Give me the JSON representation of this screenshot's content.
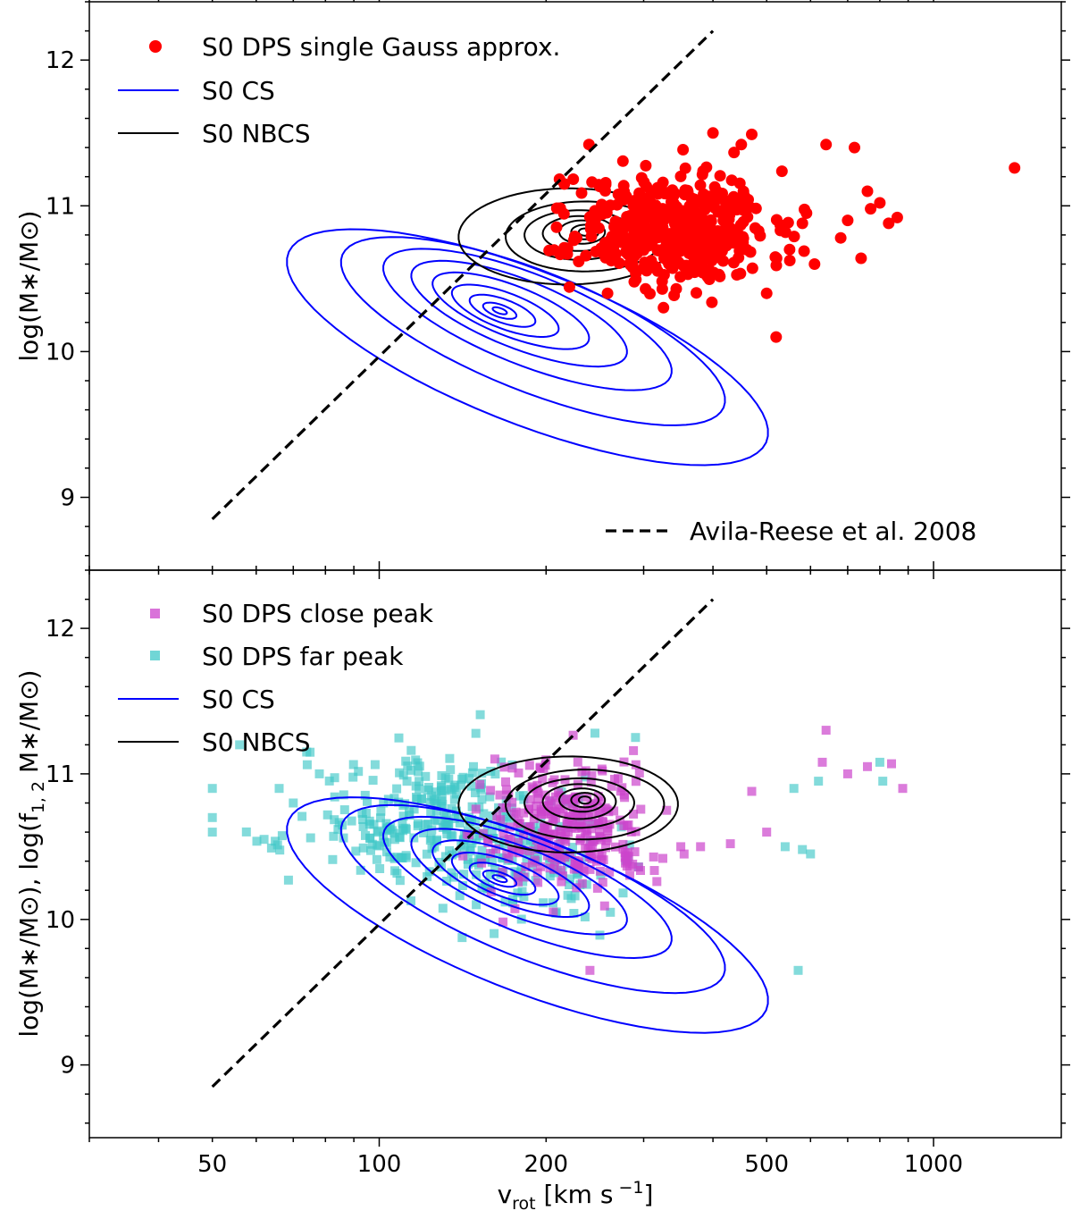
{
  "chart_data": [
    {
      "type": "scatter",
      "panel": "top",
      "xscale": "log",
      "xlim": [
        30,
        1700
      ],
      "ylim": [
        8.5,
        12.4
      ],
      "yticks": [
        9,
        10,
        11,
        12
      ],
      "ylabel": "log(M∗/M⊙)",
      "grid": false,
      "legend_position": "upper-left",
      "legend": [
        {
          "label": "S0 DPS single Gauss approx.",
          "kind": "marker",
          "color": "#ff0000"
        },
        {
          "label": "S0 CS",
          "kind": "line",
          "color": "#0000ff"
        },
        {
          "label": "S0 NBCS",
          "kind": "line",
          "color": "#000000"
        }
      ],
      "extra_legend": {
        "label": "Avila-Reese et al. 2008",
        "position": "lower-right"
      },
      "relation_line": {
        "name": "Avila-Reese et al. 2008",
        "style": "dashed",
        "color": "#000000",
        "points": [
          [
            50,
            8.85
          ],
          [
            400,
            12.2
          ]
        ]
      },
      "cloud_series": [
        {
          "name": "S0 DPS single Gauss approx.",
          "color": "#ff0000",
          "marker": "circle",
          "alpha": 1.0,
          "clusters": [
            {
              "n": 470,
              "logx_mean": 2.53,
              "logx_sd": 0.085,
              "y_mean": 10.84,
              "y_sd": 0.2,
              "logx_min": 2.3,
              "seed": 11
            }
          ],
          "explicit_points": [
            [
              1400,
              11.26
            ],
            [
              590,
              10.95
            ],
            [
              580,
              10.88
            ],
            [
              640,
              11.42
            ],
            [
              720,
              11.4
            ],
            [
              760,
              11.1
            ],
            [
              800,
              11.02
            ],
            [
              830,
              10.88
            ],
            [
              860,
              10.92
            ],
            [
              700,
              10.9
            ],
            [
              680,
              10.78
            ],
            [
              740,
              10.64
            ],
            [
              610,
              10.6
            ],
            [
              520,
              10.1
            ],
            [
              500,
              10.4
            ],
            [
              550,
              10.7
            ],
            [
              770,
              10.98
            ],
            [
              400,
              11.5
            ],
            [
              470,
              11.49
            ],
            [
              450,
              11.42
            ]
          ]
        }
      ],
      "contours": [
        {
          "name": "S0 CS",
          "color": "#0000ff",
          "center": {
            "x": 165,
            "y": 10.28
          },
          "levels": [
            {
              "a": 0.42,
              "b": 1.05,
              "angle_deg": 44,
              "dlogx": 0.05,
              "dy": -0.25
            },
            {
              "a": 0.33,
              "b": 0.84,
              "angle_deg": 44,
              "dlogx": 0.06,
              "dy": -0.14
            },
            {
              "a": 0.25,
              "b": 0.63,
              "angle_deg": 44,
              "dlogx": 0.05,
              "dy": -0.06
            },
            {
              "a": 0.19,
              "b": 0.47,
              "angle_deg": 44,
              "dlogx": 0.035,
              "dy": -0.02
            },
            {
              "a": 0.14,
              "b": 0.34,
              "angle_deg": 44,
              "dlogx": 0.02,
              "dy": 0.0
            },
            {
              "a": 0.1,
              "b": 0.23,
              "angle_deg": 44,
              "dlogx": 0.01,
              "dy": 0.0
            },
            {
              "a": 0.065,
              "b": 0.14,
              "angle_deg": 44,
              "dlogx": 0.005,
              "dy": 0.0
            },
            {
              "a": 0.035,
              "b": 0.07,
              "angle_deg": 44,
              "dlogx": 0.0,
              "dy": 0.0
            },
            {
              "a": 0.015,
              "b": 0.03,
              "angle_deg": 44,
              "dlogx": 0.0,
              "dy": 0.0
            }
          ]
        },
        {
          "name": "S0 NBCS",
          "color": "#000000",
          "center": {
            "x": 235,
            "y": 10.82
          },
          "levels": [
            {
              "a": 0.36,
              "b": 0.33,
              "angle_deg": 3,
              "dlogx": -0.03,
              "dy": -0.03
            },
            {
              "a": 0.26,
              "b": 0.24,
              "angle_deg": 3,
              "dlogx": 0.0,
              "dy": -0.03
            },
            {
              "a": 0.18,
              "b": 0.17,
              "angle_deg": 3,
              "dlogx": -0.01,
              "dy": -0.02
            },
            {
              "a": 0.12,
              "b": 0.12,
              "angle_deg": 3,
              "dlogx": -0.01,
              "dy": -0.01
            },
            {
              "a": 0.075,
              "b": 0.08,
              "angle_deg": 3,
              "dlogx": -0.005,
              "dy": 0.0
            },
            {
              "a": 0.045,
              "b": 0.05,
              "angle_deg": 3,
              "dlogx": 0.0,
              "dy": 0.0
            },
            {
              "a": 0.02,
              "b": 0.025,
              "angle_deg": 3,
              "dlogx": 0.0,
              "dy": 0.0
            }
          ]
        }
      ]
    },
    {
      "type": "scatter",
      "panel": "bottom",
      "xscale": "log",
      "xlim": [
        30,
        1700
      ],
      "ylim": [
        8.5,
        12.4
      ],
      "xticks": [
        50,
        100,
        200,
        500,
        1000
      ],
      "xtick_labels": [
        "50",
        "100",
        "200",
        "500",
        "1000"
      ],
      "yticks": [
        9,
        10,
        11,
        12
      ],
      "xlabel": "v",
      "xlabel_sub": "rot",
      "xlabel_tail": " [km s",
      "xlabel_sup": " −1",
      "xlabel_end": "]",
      "ylabel": "log(M∗/M⊙), log(f",
      "ylabel_sub": "1, 2",
      "ylabel_tail": " M∗/M⊙)",
      "grid": false,
      "legend_position": "upper-left",
      "legend": [
        {
          "label": "S0 DPS close peak",
          "kind": "marker",
          "color": "#cc44cc"
        },
        {
          "label": "S0 DPS far peak",
          "kind": "marker",
          "color": "#40c8c8"
        },
        {
          "label": "S0 CS",
          "kind": "line",
          "color": "#0000ff"
        },
        {
          "label": "S0 NBCS",
          "kind": "line",
          "color": "#000000"
        }
      ],
      "relation_line": {
        "name": "Avila-Reese et al. 2008",
        "style": "dashed",
        "color": "#000000",
        "points": [
          [
            50,
            8.85
          ],
          [
            400,
            12.2
          ]
        ]
      },
      "cloud_series": [
        {
          "name": "S0 DPS far peak",
          "color": "#40c8c8",
          "marker": "square",
          "alpha": 0.65,
          "clusters": [
            {
              "n": 270,
              "logx_mean": 2.1,
              "logx_sd": 0.11,
              "y_mean": 10.68,
              "y_sd": 0.22,
              "seed": 21
            },
            {
              "n": 110,
              "logx_mean": 2.27,
              "logx_sd": 0.08,
              "y_mean": 10.38,
              "y_sd": 0.18,
              "seed": 22
            }
          ],
          "explicit_points": [
            [
              50,
              10.9
            ],
            [
              50,
              10.7
            ],
            [
              50,
              10.6
            ],
            [
              62,
              10.55
            ],
            [
              66,
              10.9
            ],
            [
              70,
              10.8
            ],
            [
              74,
              11.15
            ],
            [
              78,
              11.0
            ],
            [
              56,
              11.2
            ],
            [
              580,
              10.48
            ],
            [
              600,
              10.45
            ],
            [
              560,
              10.9
            ],
            [
              620,
              10.95
            ],
            [
              800,
              11.08
            ],
            [
              810,
              10.95
            ],
            [
              570,
              9.65
            ],
            [
              540,
              10.5
            ],
            [
              245,
              11.28
            ],
            [
              290,
              11.25
            ]
          ]
        },
        {
          "name": "S0 DPS close peak",
          "color": "#cc44cc",
          "marker": "square",
          "alpha": 0.7,
          "clusters": [
            {
              "n": 300,
              "logx_mean": 2.33,
              "logx_sd": 0.08,
              "y_mean": 10.62,
              "y_sd": 0.22,
              "seed": 31
            }
          ],
          "explicit_points": [
            [
              240,
              9.65
            ],
            [
              640,
              11.3
            ],
            [
              630,
              11.08
            ],
            [
              840,
              11.07
            ],
            [
              880,
              10.9
            ],
            [
              470,
              10.88
            ],
            [
              500,
              10.6
            ],
            [
              380,
              10.5
            ],
            [
              430,
              10.52
            ],
            [
              350,
              10.5
            ],
            [
              700,
              11.0
            ],
            [
              760,
              11.05
            ],
            [
              330,
              10.75
            ],
            [
              280,
              10.4
            ]
          ]
        }
      ],
      "contours_same_as_top": true
    }
  ]
}
